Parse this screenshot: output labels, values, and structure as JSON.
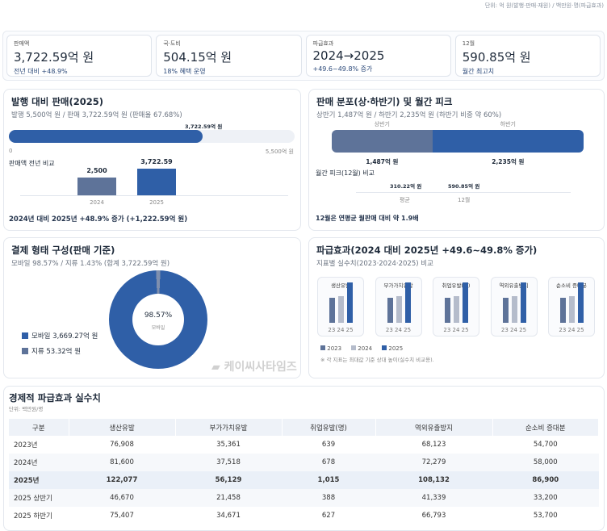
{
  "unit_note": "단위: 억 원(발행·판매·재원) / 백만원·명(파급효과)",
  "kpis": [
    {
      "label": "판매액",
      "value": "3,722.59억 원",
      "sub": "전년 대비 +48.9%"
    },
    {
      "label": "국·도비",
      "value": "504.15억 원",
      "sub": "18% 혜택 운영"
    },
    {
      "label": "파급효과",
      "value": "2024→2025",
      "sub": "+49.6~49.8% 증가"
    },
    {
      "label": "12월",
      "value": "590.85억 원",
      "sub": "월간 최고치"
    }
  ],
  "issue": {
    "title": "발행 대비 판매(2025)",
    "subtitle": "발행 5,500억 원 / 판매 3,722.59억 원 (판매율 67.68%)",
    "progress_label": "3,722.59억 원",
    "progress_pct": 67.68,
    "axis_min": "0",
    "axis_max": "5,500억 원",
    "compare_title": "판매액 전년 비교",
    "bars": [
      {
        "year": "2024",
        "label": "2,500",
        "value": 2500
      },
      {
        "year": "2025",
        "label": "3,722.59",
        "value": 3722.59
      }
    ],
    "note": "2024년 대비 2025년 +48.9% 증가 (+1,222.59억 원)"
  },
  "dist": {
    "title": "판매 분포(상·하반기) 및 월간 피크",
    "subtitle": "상반기 1,487억 원 / 하반기 2,235억 원 (하반기 비중 약 60%)",
    "h1_name": "상반기",
    "h2_name": "하반기",
    "h1_value": 1487,
    "h2_value": 2235,
    "h1_label": "1,487억 원",
    "h2_label": "2,235억 원",
    "peak_title": "월간 피크(12월) 비교",
    "peak": [
      {
        "name": "평균",
        "label": "310.22억 원"
      },
      {
        "name": "12월",
        "label": "590.85억 원"
      }
    ],
    "note": "12월은 연평균 월판매 대비 약 1.9배"
  },
  "payment": {
    "title": "결제 형태 구성(판매 기준)",
    "subtitle": "모바일 98.57% / 지류 1.43% (합계 3,722.59억 원)",
    "center_value": "98.57%",
    "center_label": "모바일",
    "mobile_pct": 98.57,
    "legend": [
      {
        "label": "모바일 3,669.27억 원",
        "color": "#2f5fa7"
      },
      {
        "label": "지류 53.32억 원",
        "color": "#5e7399"
      }
    ]
  },
  "impact": {
    "title": "파급효과(2024 대비 2025년 +49.6~49.8% 증가)",
    "subtitle": "지표별 실수치(2023·2024·2025) 비교",
    "x_labels": "23 24 25",
    "charts": [
      {
        "name": "생산유발",
        "values": [
          76908,
          81600,
          122077
        ]
      },
      {
        "name": "부가가치유발",
        "values": [
          35361,
          37518,
          56129
        ]
      },
      {
        "name": "취업유발(명)",
        "values": [
          639,
          678,
          1015
        ]
      },
      {
        "name": "역외유출방지",
        "values": [
          68123,
          72279,
          108132
        ]
      },
      {
        "name": "순소비 증대분",
        "values": [
          54700,
          58000,
          86900
        ]
      }
    ],
    "legend": [
      "2023",
      "2024",
      "2025"
    ],
    "colors": [
      "#5e7399",
      "#b5bccb",
      "#2f5fa7"
    ],
    "note": "※ 각 지표는 최대값 기준 상대 높이(실수치 비교용)."
  },
  "table": {
    "title": "경제적 파급효과 실수치",
    "unit": "단위: 백만원/명",
    "headers": [
      "구분",
      "생산유발",
      "부가가치유발",
      "취업유발(명)",
      "역외유출방지",
      "순소비 증대분"
    ],
    "rows": [
      [
        "2023년",
        "76,908",
        "35,361",
        "639",
        "68,123",
        "54,700"
      ],
      [
        "2024년",
        "81,600",
        "37,518",
        "678",
        "72,279",
        "58,000"
      ],
      [
        "2025년",
        "122,077",
        "56,129",
        "1,015",
        "108,132",
        "86,900"
      ],
      [
        "2025 상반기",
        "46,670",
        "21,458",
        "388",
        "41,339",
        "33,200"
      ],
      [
        "2025 하반기",
        "75,407",
        "34,671",
        "627",
        "66,793",
        "53,700"
      ]
    ]
  },
  "watermark": "케이씨사타임즈"
}
